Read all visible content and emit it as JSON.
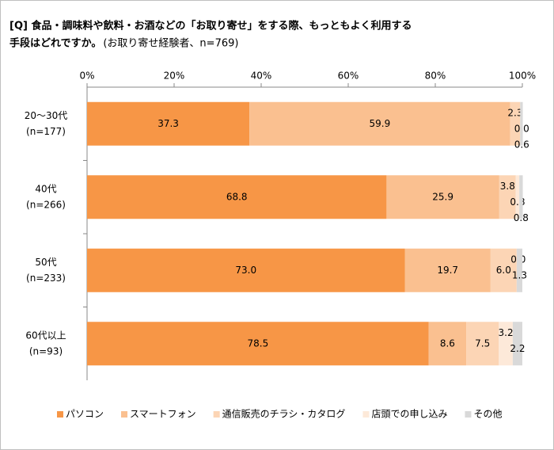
{
  "chart_data": {
    "type": "stacked-barh",
    "title": [
      "[Q] 食品・調味料や飲料・お酒などの「お取り寄せ」をする際、もっともよく利用する",
      "手段はどれですか。"
    ],
    "subtitle": "(お取り寄せ経験者、n=769)",
    "categories": [
      "20～30代",
      "40代",
      "50代",
      "60代以上"
    ],
    "category_notes": [
      "(n=177)",
      "(n=266)",
      "(n=233)",
      "(n=93)"
    ],
    "xlim": [
      0,
      100
    ],
    "xticks": [
      {
        "value": 0,
        "label": "0%"
      },
      {
        "value": 20,
        "label": "20%"
      },
      {
        "value": 40,
        "label": "40%"
      },
      {
        "value": 60,
        "label": "60%"
      },
      {
        "value": 80,
        "label": "80%"
      },
      {
        "value": 100,
        "label": "100%"
      }
    ],
    "grid": false,
    "legend": "bottom",
    "series": [
      {
        "name": "パソコン",
        "color": "#f79646",
        "values": [
          37.3,
          68.8,
          73.0,
          78.5
        ],
        "value_labels": [
          "37.3",
          "68.8",
          "73.0",
          "78.5"
        ]
      },
      {
        "name": "スマートフォン",
        "color": "#fac090",
        "values": [
          59.9,
          25.9,
          19.7,
          8.6
        ],
        "value_labels": [
          "59.9",
          "25.9",
          "19.7",
          "8.6"
        ]
      },
      {
        "name": "通信販売のチラシ・カタログ",
        "color": "#fcd5b5",
        "values": [
          2.3,
          3.8,
          6.0,
          7.5
        ],
        "value_labels": [
          "2.3",
          "3.8",
          "6.0",
          "7.5"
        ]
      },
      {
        "name": "店頭での申し込み",
        "color": "#fde9d9",
        "values": [
          0.0,
          0.8,
          0.0,
          3.2
        ],
        "value_labels": [
          "0.0",
          "0.8",
          "0.0",
          "3.2"
        ]
      },
      {
        "name": "その他",
        "color": "#d9d9d9",
        "values": [
          0.6,
          0.8,
          1.3,
          2.2
        ],
        "value_labels": [
          "0.6",
          "0.8",
          "1.3",
          "2.2"
        ]
      }
    ]
  }
}
